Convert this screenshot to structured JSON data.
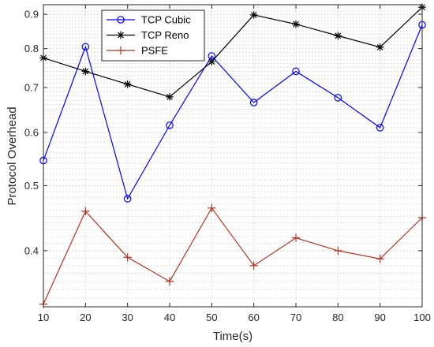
{
  "chart_data": {
    "type": "line",
    "title": "",
    "xlabel": "Time(s)",
    "ylabel": "Protocol Overhead",
    "x": [
      10,
      20,
      30,
      40,
      50,
      60,
      70,
      80,
      90,
      100
    ],
    "xlim": [
      10,
      100
    ],
    "ylim": [
      0.33,
      0.93
    ],
    "yscale": "log",
    "xticks": [
      10,
      20,
      30,
      40,
      50,
      60,
      70,
      80,
      90,
      100
    ],
    "yticks": [
      0.4,
      0.5,
      0.6,
      0.7,
      0.8,
      0.9
    ],
    "grid": true,
    "legend_position": "top-left",
    "series": [
      {
        "name": "TCP Cubic",
        "color": "#0000ff",
        "marker": "circle",
        "values": [
          0.545,
          0.805,
          0.478,
          0.615,
          0.78,
          0.665,
          0.74,
          0.676,
          0.61,
          0.868
        ]
      },
      {
        "name": "TCP Reno",
        "color": "#000000",
        "marker": "asterisk",
        "values": [
          0.775,
          0.74,
          0.708,
          0.678,
          0.765,
          0.898,
          0.87,
          0.836,
          0.804,
          0.922
        ]
      },
      {
        "name": "PSFE",
        "color": "#b5321e",
        "marker": "plus",
        "values": [
          0.333,
          0.458,
          0.391,
          0.36,
          0.463,
          0.38,
          0.418,
          0.4,
          0.389,
          0.448
        ]
      }
    ]
  }
}
